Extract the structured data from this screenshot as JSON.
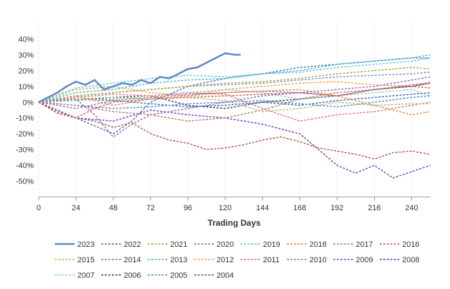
{
  "chart_data": {
    "type": "line",
    "title": "",
    "xlabel": "Trading Days",
    "ylabel": "",
    "xlim": [
      0,
      252
    ],
    "ylim": [
      -60,
      50
    ],
    "x_ticks": [
      0,
      24,
      48,
      72,
      96,
      120,
      144,
      168,
      192,
      216,
      240
    ],
    "y_ticks": [
      -50,
      -40,
      -30,
      -20,
      -10,
      0,
      10,
      20,
      30,
      40
    ],
    "y_tick_labels": [
      "-50%",
      "-40%",
      "-30%",
      "-20%",
      "-10%",
      "0%",
      "10%",
      "20%",
      "30%",
      "40%"
    ],
    "grid": "vertical dashed",
    "legend_position": "bottom",
    "series": [
      {
        "name": "2023",
        "color": "#5b8ac4",
        "style": "solid",
        "x": [
          0,
          6,
          12,
          18,
          24,
          30,
          36,
          42,
          48,
          54,
          60,
          66,
          72,
          78,
          84,
          90,
          96,
          102,
          108,
          114,
          120,
          126,
          130
        ],
        "y": [
          0,
          3,
          6,
          10,
          13,
          11,
          14,
          8,
          10,
          12,
          11,
          14,
          12,
          16,
          15,
          18,
          21,
          22,
          25,
          28,
          31,
          30,
          30
        ]
      },
      {
        "name": "2022",
        "color": "#b14f47",
        "style": "dashed",
        "x": [
          0,
          12,
          24,
          36,
          48,
          60,
          72,
          84,
          96,
          108,
          120,
          132,
          144,
          156,
          168,
          180,
          192,
          204,
          216,
          228,
          240,
          252
        ],
        "y": [
          0,
          -7,
          -10,
          -12,
          -16,
          -13,
          -20,
          -24,
          -26,
          -30,
          -29,
          -27,
          -24,
          -22,
          -25,
          -29,
          -31,
          -33,
          -36,
          -32,
          -31,
          -33
        ]
      },
      {
        "name": "2021",
        "color": "#a4a33a",
        "style": "dashed",
        "x": [
          0,
          24,
          48,
          72,
          96,
          120,
          144,
          168,
          192,
          216,
          240,
          252
        ],
        "y": [
          0,
          4,
          6,
          8,
          10,
          12,
          13,
          15,
          18,
          20,
          22,
          21
        ]
      },
      {
        "name": "2020",
        "color": "#8c6bb8",
        "style": "dashed",
        "x": [
          0,
          24,
          36,
          48,
          60,
          72,
          96,
          120,
          144,
          168,
          192,
          216,
          240,
          252
        ],
        "y": [
          0,
          2,
          -8,
          -22,
          -14,
          -8,
          -4,
          0,
          4,
          6,
          8,
          10,
          14,
          16
        ]
      },
      {
        "name": "2019",
        "color": "#5ec4dc",
        "style": "dashed",
        "x": [
          0,
          24,
          48,
          72,
          96,
          120,
          144,
          168,
          192,
          216,
          240,
          252
        ],
        "y": [
          0,
          9,
          12,
          15,
          17,
          16,
          18,
          19,
          22,
          24,
          26,
          28
        ]
      },
      {
        "name": "2018",
        "color": "#e5853b",
        "style": "dashed",
        "x": [
          0,
          24,
          48,
          72,
          96,
          120,
          144,
          168,
          192,
          216,
          240,
          252
        ],
        "y": [
          0,
          4,
          -2,
          2,
          4,
          6,
          7,
          8,
          4,
          -2,
          -8,
          -6
        ]
      },
      {
        "name": "2017",
        "color": "#6f92c8",
        "style": "dashed",
        "x": [
          0,
          24,
          48,
          72,
          96,
          120,
          144,
          168,
          192,
          216,
          240,
          252
        ],
        "y": [
          0,
          4,
          6,
          8,
          10,
          11,
          12,
          14,
          16,
          17,
          18,
          19
        ]
      },
      {
        "name": "2016",
        "color": "#d9574e",
        "style": "dashed",
        "x": [
          0,
          12,
          24,
          36,
          48,
          72,
          96,
          120,
          144,
          168,
          192,
          216,
          240,
          252
        ],
        "y": [
          0,
          -6,
          -10,
          -4,
          0,
          2,
          3,
          4,
          5,
          6,
          4,
          8,
          10,
          9
        ]
      },
      {
        "name": "2015",
        "color": "#bdb267",
        "style": "dashed",
        "x": [
          0,
          24,
          48,
          72,
          96,
          120,
          144,
          168,
          192,
          216,
          240,
          252
        ],
        "y": [
          0,
          2,
          3,
          2,
          3,
          1,
          -6,
          -4,
          0,
          -2,
          -1,
          -1
        ]
      },
      {
        "name": "2014",
        "color": "#8a6fb0",
        "style": "dashed",
        "x": [
          0,
          24,
          48,
          72,
          96,
          120,
          144,
          168,
          192,
          216,
          240,
          252
        ],
        "y": [
          0,
          -4,
          1,
          3,
          5,
          6,
          7,
          6,
          4,
          8,
          11,
          12
        ]
      },
      {
        "name": "2013",
        "color": "#4ab6c4",
        "style": "dashed",
        "x": [
          0,
          24,
          48,
          72,
          96,
          120,
          144,
          168,
          192,
          216,
          240,
          252
        ],
        "y": [
          0,
          6,
          8,
          12,
          14,
          15,
          18,
          20,
          24,
          26,
          28,
          30
        ]
      },
      {
        "name": "2012",
        "color": "#e8a04c",
        "style": "dashed",
        "x": [
          0,
          24,
          48,
          72,
          96,
          120,
          144,
          168,
          192,
          216,
          240,
          252
        ],
        "y": [
          0,
          8,
          10,
          6,
          4,
          8,
          10,
          12,
          13,
          11,
          10,
          13
        ]
      },
      {
        "name": "2011",
        "color": "#e06c85",
        "style": "dashed",
        "x": [
          0,
          24,
          48,
          72,
          96,
          120,
          144,
          168,
          192,
          216,
          240,
          252
        ],
        "y": [
          0,
          3,
          5,
          4,
          6,
          5,
          -4,
          -12,
          -8,
          -6,
          -2,
          0
        ]
      },
      {
        "name": "2010",
        "color": "#b07868",
        "style": "dashed",
        "x": [
          0,
          24,
          48,
          72,
          96,
          120,
          144,
          168,
          192,
          216,
          240,
          252
        ],
        "y": [
          0,
          -2,
          -6,
          -8,
          -12,
          -10,
          -5,
          2,
          6,
          8,
          10,
          12
        ]
      },
      {
        "name": "2009",
        "color": "#4170ba",
        "style": "dashed",
        "x": [
          0,
          24,
          48,
          60,
          72,
          96,
          120,
          144,
          168,
          192,
          216,
          240,
          252
        ],
        "y": [
          0,
          -10,
          -20,
          -12,
          0,
          10,
          15,
          18,
          22,
          24,
          26,
          28,
          28
        ]
      },
      {
        "name": "2008",
        "color": "#6a3bc4",
        "style": "dashed",
        "x": [
          0,
          24,
          48,
          72,
          96,
          120,
          144,
          168,
          180,
          192,
          204,
          216,
          228,
          240,
          252
        ],
        "y": [
          0,
          -10,
          -12,
          -5,
          -8,
          -10,
          -14,
          -20,
          -30,
          -40,
          -45,
          -40,
          -48,
          -44,
          -40
        ]
      },
      {
        "name": "2007",
        "color": "#7fd4c2",
        "style": "dashed",
        "x": [
          0,
          24,
          48,
          72,
          96,
          120,
          144,
          168,
          192,
          216,
          240,
          252
        ],
        "y": [
          0,
          1,
          2,
          4,
          6,
          8,
          6,
          2,
          4,
          6,
          8,
          4
        ]
      },
      {
        "name": "2006",
        "color": "#3a3f5c",
        "style": "dashed",
        "x": [
          0,
          24,
          48,
          72,
          96,
          120,
          144,
          168,
          192,
          216,
          240,
          252
        ],
        "y": [
          0,
          1,
          3,
          4,
          -2,
          -4,
          0,
          2,
          4,
          8,
          10,
          12
        ]
      },
      {
        "name": "2005",
        "color": "#4a8ccc",
        "style": "dashed",
        "x": [
          0,
          24,
          48,
          72,
          96,
          120,
          144,
          168,
          192,
          216,
          240,
          252
        ],
        "y": [
          0,
          -2,
          -4,
          -3,
          -1,
          0,
          1,
          -1,
          -3,
          0,
          3,
          4
        ]
      },
      {
        "name": "2004",
        "color": "#2e64b4",
        "style": "dashed",
        "x": [
          0,
          24,
          48,
          72,
          96,
          120,
          144,
          168,
          192,
          216,
          240,
          252
        ],
        "y": [
          0,
          2,
          1,
          -1,
          -3,
          -2,
          0,
          -2,
          1,
          3,
          5,
          6
        ]
      }
    ]
  }
}
